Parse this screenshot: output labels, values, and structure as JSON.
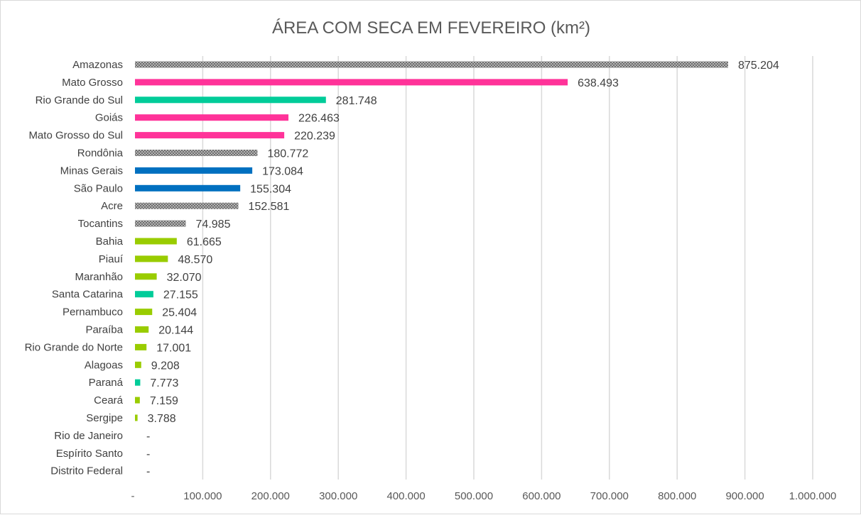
{
  "chart_data": {
    "type": "bar",
    "orientation": "horizontal",
    "title": "ÁREA COM SECA EM FEVEREIRO (km²)",
    "xlabel": "",
    "ylabel": "",
    "xlim": [
      0,
      1000000
    ],
    "grid": true,
    "x_ticks": [
      {
        "value": 0,
        "label": "-"
      },
      {
        "value": 100000,
        "label": "100.000"
      },
      {
        "value": 200000,
        "label": "200.000"
      },
      {
        "value": 300000,
        "label": "300.000"
      },
      {
        "value": 400000,
        "label": "400.000"
      },
      {
        "value": 500000,
        "label": "500.000"
      },
      {
        "value": 600000,
        "label": "600.000"
      },
      {
        "value": 700000,
        "label": "700.000"
      },
      {
        "value": 800000,
        "label": "800.000"
      },
      {
        "value": 900000,
        "label": "900.000"
      },
      {
        "value": 1000000,
        "label": "1.000.000"
      }
    ],
    "bars": [
      {
        "category": "Amazonas",
        "value": 875204,
        "label": "875.204",
        "color": "#808080",
        "pattern": "dotted"
      },
      {
        "category": "Mato Grosso",
        "value": 638493,
        "label": "638.493",
        "color": "#ff3399",
        "pattern": "solid"
      },
      {
        "category": "Rio Grande do Sul",
        "value": 281748,
        "label": "281.748",
        "color": "#00cc99",
        "pattern": "solid"
      },
      {
        "category": "Goiás",
        "value": 226463,
        "label": "226.463",
        "color": "#ff3399",
        "pattern": "solid"
      },
      {
        "category": "Mato Grosso do Sul",
        "value": 220239,
        "label": "220.239",
        "color": "#ff3399",
        "pattern": "solid"
      },
      {
        "category": "Rondônia",
        "value": 180772,
        "label": "180.772",
        "color": "#808080",
        "pattern": "dotted"
      },
      {
        "category": "Minas Gerais",
        "value": 173084,
        "label": "173.084",
        "color": "#0070c0",
        "pattern": "solid"
      },
      {
        "category": "São Paulo",
        "value": 155304,
        "label": "155.304",
        "color": "#0070c0",
        "pattern": "solid"
      },
      {
        "category": "Acre",
        "value": 152581,
        "label": "152.581",
        "color": "#808080",
        "pattern": "dotted"
      },
      {
        "category": "Tocantins",
        "value": 74985,
        "label": "74.985",
        "color": "#808080",
        "pattern": "dotted"
      },
      {
        "category": "Bahia",
        "value": 61665,
        "label": "61.665",
        "color": "#99cc00",
        "pattern": "solid"
      },
      {
        "category": "Piauí",
        "value": 48570,
        "label": "48.570",
        "color": "#99cc00",
        "pattern": "solid"
      },
      {
        "category": "Maranhão",
        "value": 32070,
        "label": "32.070",
        "color": "#99cc00",
        "pattern": "solid"
      },
      {
        "category": "Santa Catarina",
        "value": 27155,
        "label": "27.155",
        "color": "#00cc99",
        "pattern": "solid"
      },
      {
        "category": "Pernambuco",
        "value": 25404,
        "label": "25.404",
        "color": "#99cc00",
        "pattern": "solid"
      },
      {
        "category": "Paraíba",
        "value": 20144,
        "label": "20.144",
        "color": "#99cc00",
        "pattern": "solid"
      },
      {
        "category": "Rio Grande do Norte",
        "value": 17001,
        "label": "17.001",
        "color": "#99cc00",
        "pattern": "solid"
      },
      {
        "category": "Alagoas",
        "value": 9208,
        "label": "9.208",
        "color": "#99cc00",
        "pattern": "solid"
      },
      {
        "category": "Paraná",
        "value": 7773,
        "label": "7.773",
        "color": "#00cc99",
        "pattern": "solid"
      },
      {
        "category": "Ceará",
        "value": 7159,
        "label": "7.159",
        "color": "#99cc00",
        "pattern": "solid"
      },
      {
        "category": "Sergipe",
        "value": 3788,
        "label": "3.788",
        "color": "#99cc00",
        "pattern": "solid"
      },
      {
        "category": "Rio de Janeiro",
        "value": 0,
        "label": "-",
        "color": "#808080",
        "pattern": "solid"
      },
      {
        "category": "Espírito Santo",
        "value": 0,
        "label": "-",
        "color": "#808080",
        "pattern": "solid"
      },
      {
        "category": "Distrito Federal",
        "value": 0,
        "label": "-",
        "color": "#808080",
        "pattern": "solid"
      }
    ]
  }
}
